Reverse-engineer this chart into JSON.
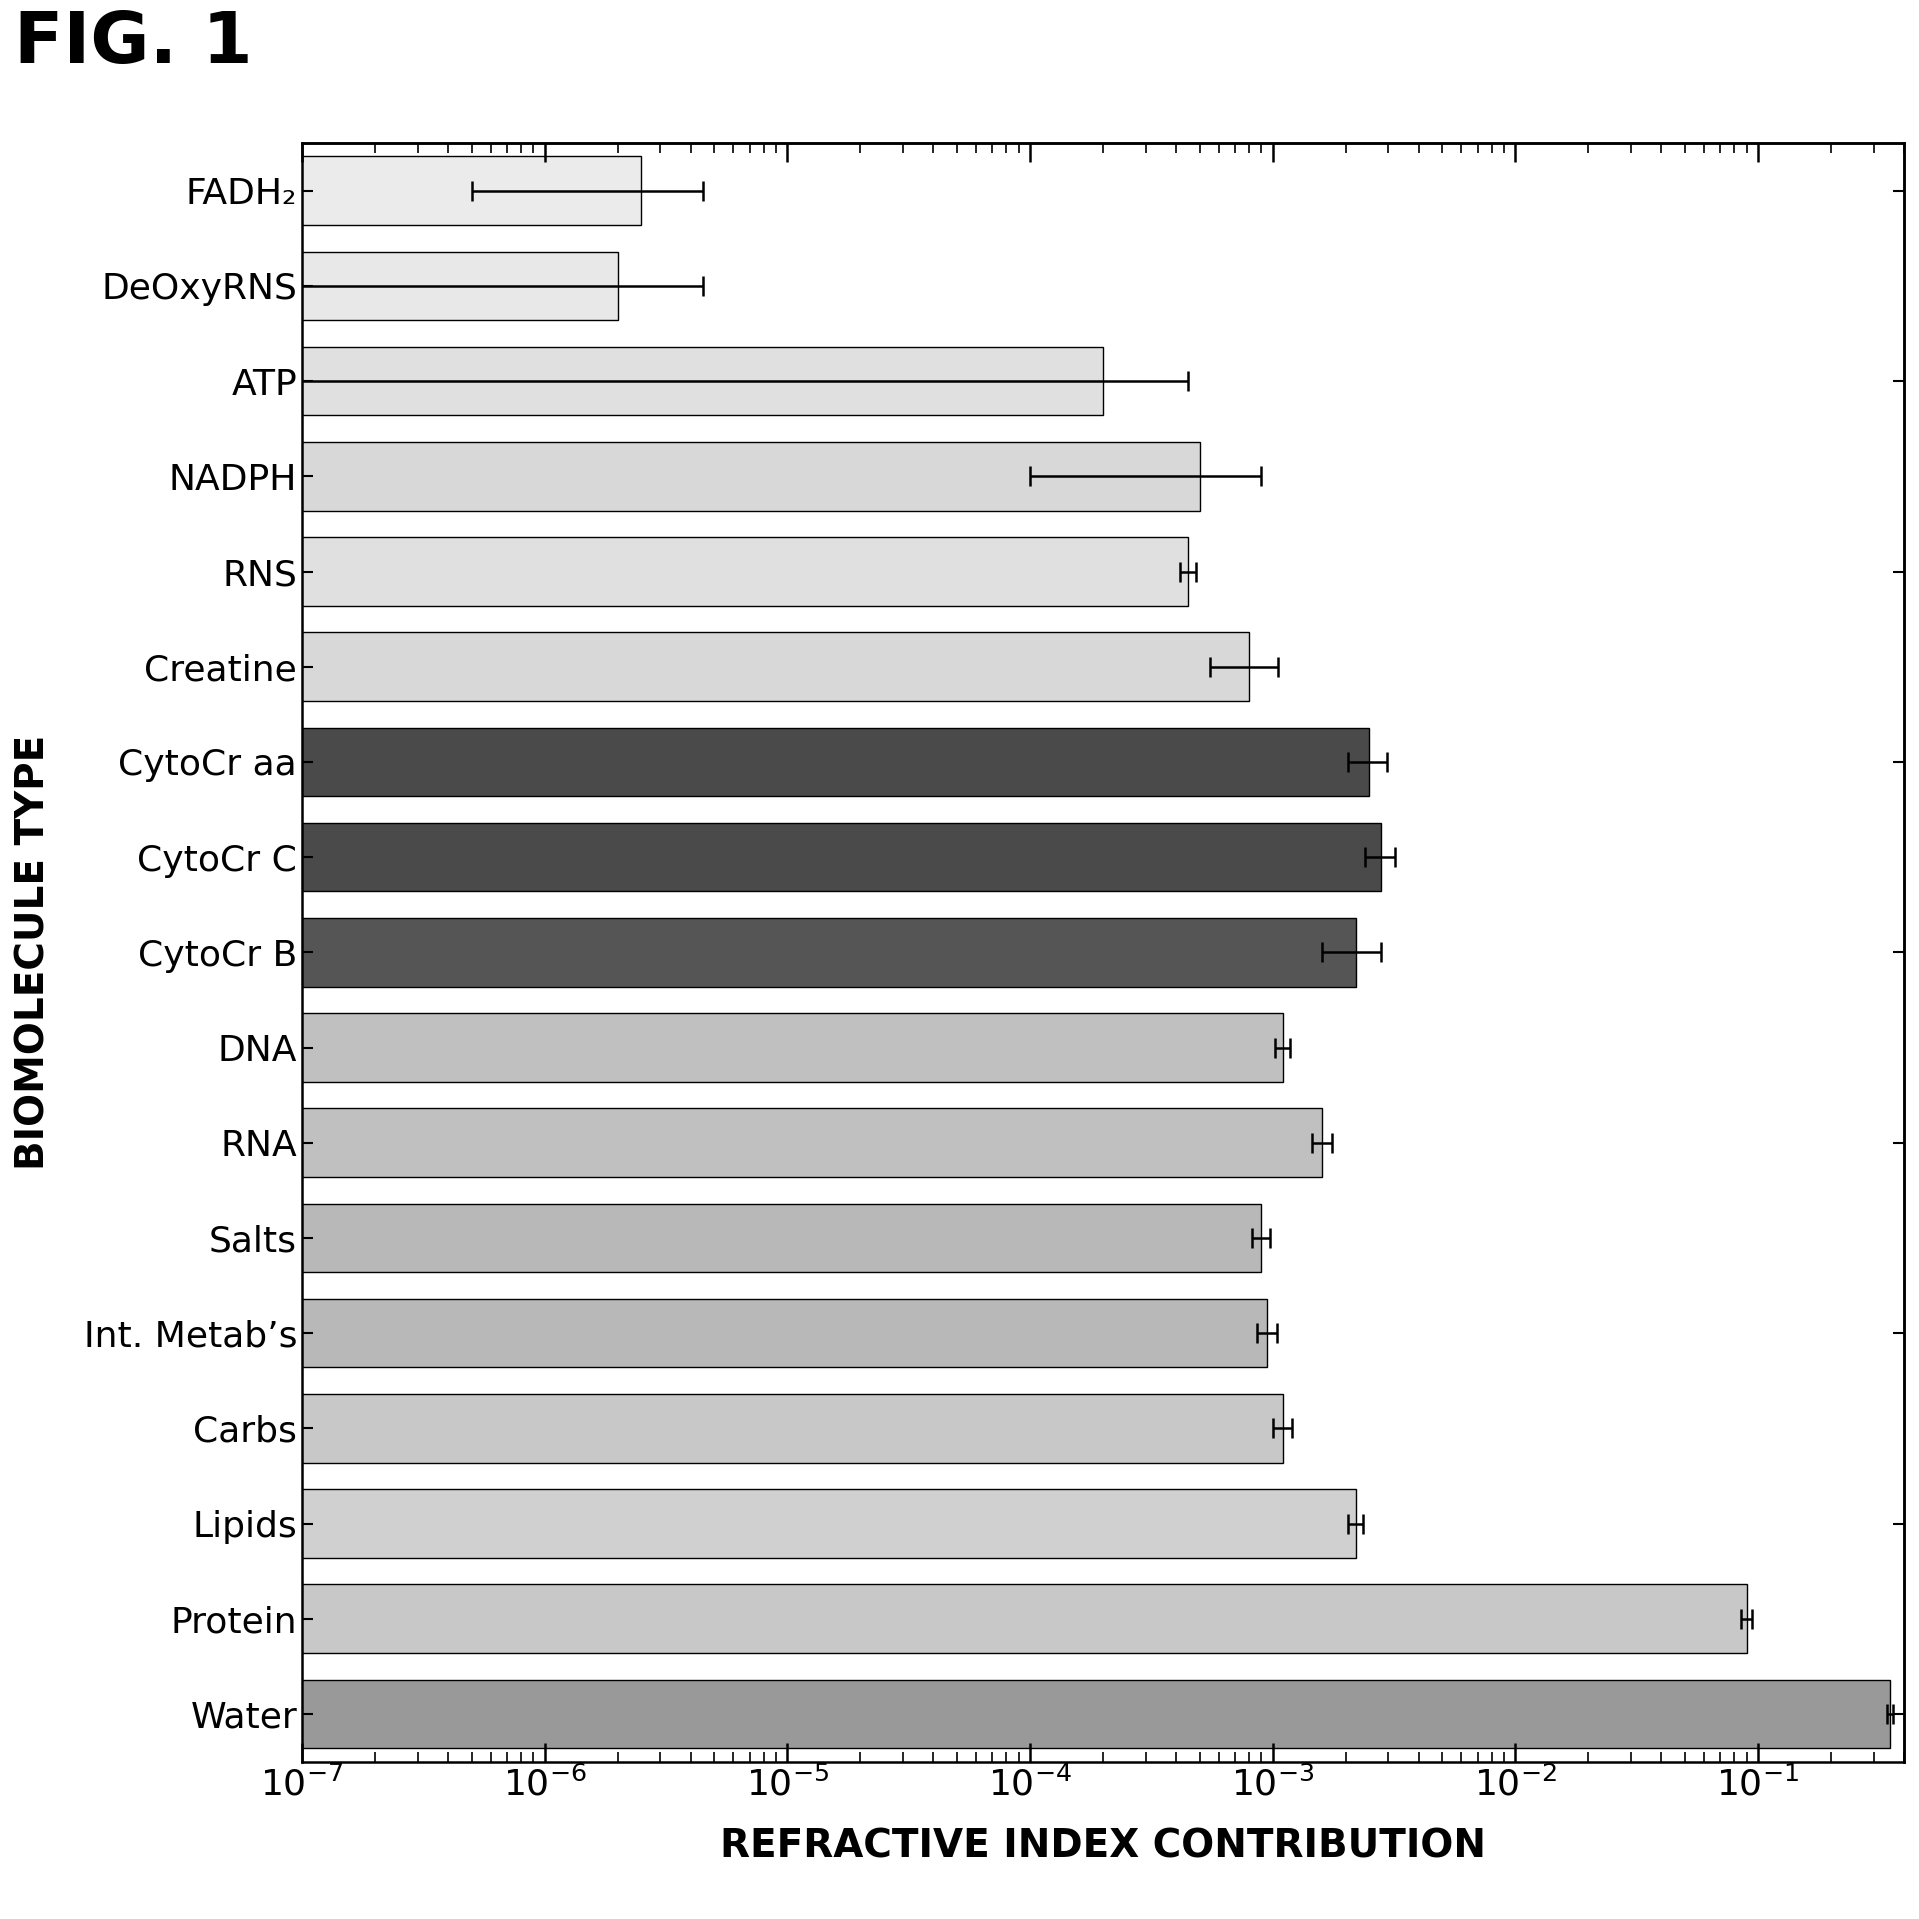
{
  "categories": [
    "Water",
    "Protein",
    "Lipids",
    "Carbs",
    "Int. Metab’s",
    "Salts",
    "RNA",
    "DNA",
    "CytoCr B",
    "CytoCr C",
    "CytoCr aa",
    "Creatine",
    "RNS",
    "NADPH",
    "ATP",
    "DeOxyRNS",
    "FADH₂"
  ],
  "values": [
    0.35,
    0.09,
    0.0022,
    0.0011,
    0.00095,
    0.0009,
    0.0016,
    0.0011,
    0.0022,
    0.0028,
    0.0025,
    0.0008,
    0.00045,
    0.0005,
    0.0002,
    2e-06,
    2.5e-06
  ],
  "errors": [
    0.01,
    0.005,
    0.00015,
    0.0001,
    9e-05,
    8e-05,
    0.00015,
    8e-05,
    0.0006,
    0.0004,
    0.00045,
    0.00025,
    3.5e-05,
    0.0004,
    0.00025,
    2.5e-06,
    2e-06
  ],
  "bar_colors": [
    "#999999",
    "#c8c8c8",
    "#d0d0d0",
    "#c8c8c8",
    "#b8b8b8",
    "#b8b8b8",
    "#c0c0c0",
    "#c0c0c0",
    "#555555",
    "#4a4a4a",
    "#4a4a4a",
    "#d8d8d8",
    "#e0e0e0",
    "#d8d8d8",
    "#e0e0e0",
    "#e8e8e8",
    "#ebebeb"
  ],
  "bar_edgecolors": [
    "black",
    "black",
    "black",
    "black",
    "black",
    "black",
    "black",
    "black",
    "black",
    "black",
    "black",
    "black",
    "black",
    "black",
    "black",
    "black",
    "black"
  ],
  "title": "FIG. 1",
  "xlabel": "REFRACTIVE INDEX CONTRIBUTION",
  "ylabel": "BIOMOLECULE TYPE",
  "xlim_low": 1e-07,
  "xlim_high": 0.4,
  "fig_width": 19.19,
  "fig_height": 19.19,
  "bar_height": 0.72,
  "title_fontsize": 52,
  "label_fontsize": 28,
  "tick_fontsize": 26
}
